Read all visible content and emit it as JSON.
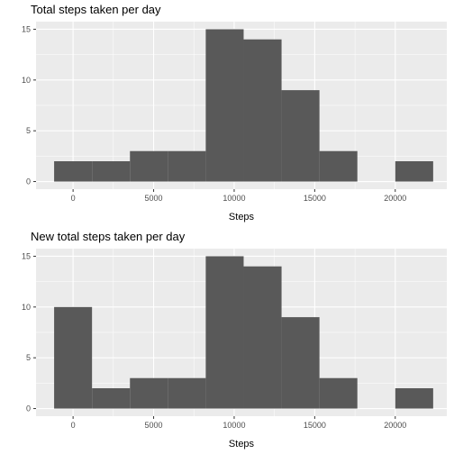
{
  "chart_data": [
    {
      "type": "bar",
      "title": "Total steps taken per day",
      "xlabel": "Steps",
      "ylabel": "",
      "bin_width": 2353,
      "bins_left": [
        -1177,
        1177,
        3530,
        5883,
        8236,
        10589,
        12942,
        15295,
        17648,
        20001
      ],
      "values": [
        2,
        2,
        3,
        3,
        15,
        14,
        9,
        3,
        0,
        2
      ],
      "xlim": [
        -2300,
        23200
      ],
      "ylim": [
        -0.75,
        15.75
      ],
      "x_ticks": [
        0,
        5000,
        10000,
        15000,
        20000
      ],
      "x_tick_labels": [
        "0",
        "5000",
        "10000",
        "15000",
        "20000"
      ],
      "y_ticks": [
        0,
        5,
        10,
        15
      ],
      "y_tick_labels": [
        "0",
        "5",
        "10",
        "15"
      ],
      "grid": true,
      "colors": {
        "panel": "#ebebeb",
        "grid": "#ffffff",
        "bar": "#595959"
      }
    },
    {
      "type": "bar",
      "title": "New total steps taken per day",
      "xlabel": "Steps",
      "ylabel": "",
      "bin_width": 2353,
      "bins_left": [
        -1177,
        1177,
        3530,
        5883,
        8236,
        10589,
        12942,
        15295,
        17648,
        20001
      ],
      "values": [
        10,
        2,
        3,
        3,
        15,
        14,
        9,
        3,
        0,
        2
      ],
      "xlim": [
        -2300,
        23200
      ],
      "ylim": [
        -0.75,
        15.75
      ],
      "x_ticks": [
        0,
        5000,
        10000,
        15000,
        20000
      ],
      "x_tick_labels": [
        "0",
        "5000",
        "10000",
        "15000",
        "20000"
      ],
      "y_ticks": [
        0,
        5,
        10,
        15
      ],
      "y_tick_labels": [
        "0",
        "5",
        "10",
        "15"
      ],
      "grid": true,
      "colors": {
        "panel": "#ebebeb",
        "grid": "#ffffff",
        "bar": "#595959"
      }
    }
  ]
}
